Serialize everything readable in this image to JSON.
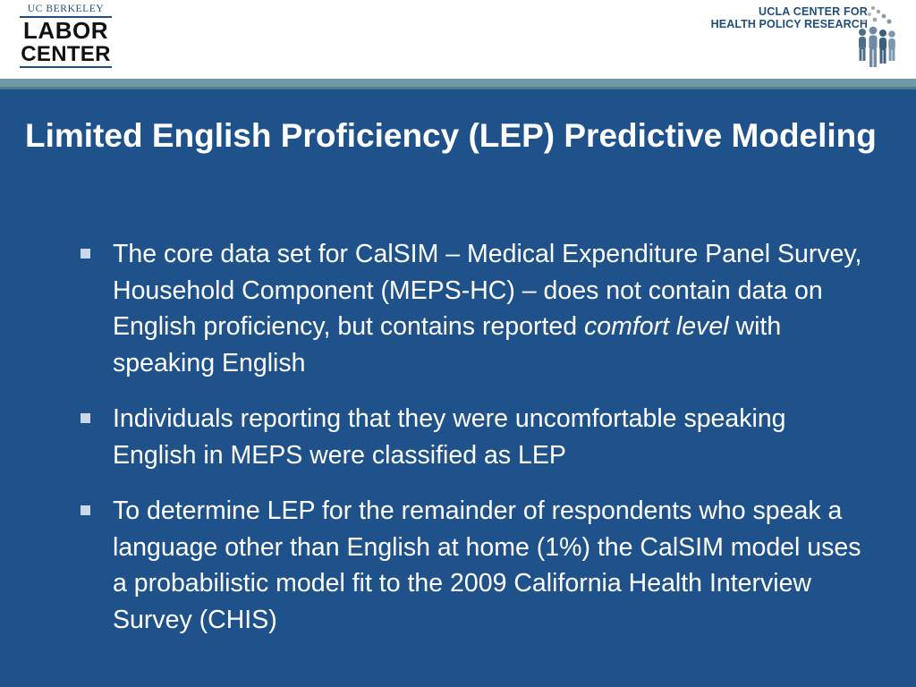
{
  "header": {
    "left_logo": {
      "top": "UC BERKELEY",
      "line1": "LABOR",
      "line2": "CENTER"
    },
    "right_logo": {
      "line1": "UCLA CENTER FOR",
      "line2": "HEALTH POLICY RESEARCH"
    }
  },
  "slide": {
    "title": "Limited English Proficiency (LEP) Predictive Modeling",
    "bullets": [
      {
        "pre": "The core data set for CalSIM – Medical Expenditure Panel Survey, Household Component (MEPS-HC) – does not contain data on English proficiency, but contains reported ",
        "em": "comfort level",
        "post": " with speaking English"
      },
      {
        "text": "Individuals reporting that they were uncomfortable speaking English in MEPS were classified as LEP"
      },
      {
        "text": "To determine LEP for the remainder of respondents who speak a language other than English at home (1%) the CalSIM model uses a probabilistic model fit to the 2009 California Health Interview Survey (CHIS)"
      }
    ]
  },
  "colors": {
    "background": "#1f528a",
    "header_rule": "#6f99a6",
    "text": "#ffffff",
    "logo_blue": "#1f4f7a"
  },
  "icons": [
    "bullet-square-icon",
    "people-group-icon"
  ]
}
